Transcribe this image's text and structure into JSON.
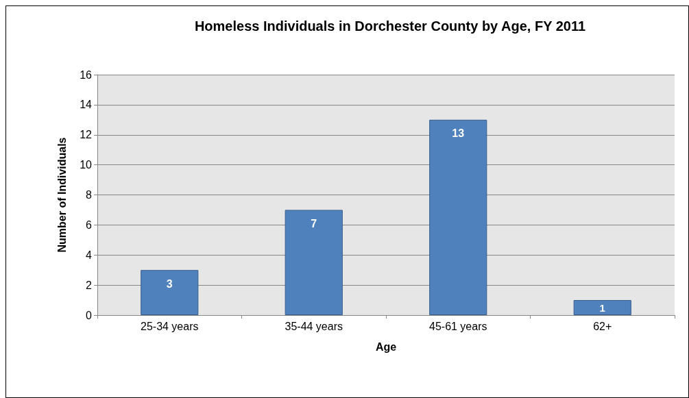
{
  "chart_data": {
    "type": "bar",
    "title": "Homeless Individuals in Dorchester County by Age, FY 2011",
    "xlabel": "Age",
    "ylabel": "Number of Individuals",
    "categories": [
      "25-34 years",
      "35-44 years",
      "45-61 years",
      "62+"
    ],
    "values": [
      3,
      7,
      13,
      1
    ],
    "color": "#4f81bd",
    "ylim": [
      0,
      16
    ],
    "yticks": [
      0,
      2,
      4,
      6,
      8,
      10,
      12,
      14,
      16
    ],
    "grid": "y",
    "data_labels": true
  }
}
